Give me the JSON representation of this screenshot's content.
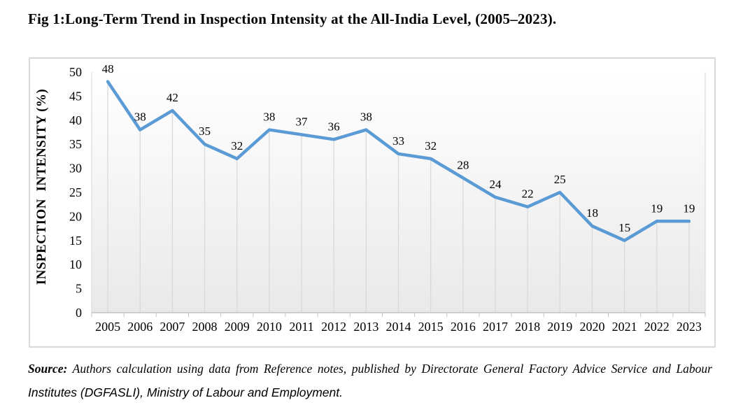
{
  "page": {
    "title": "Fig 1:Long-Term Trend in Inspection Intensity at the All-India Level, (2005–2023).",
    "source": {
      "label": "Source:",
      "line1": "Authors calculation using data from Reference notes, published by Directorate General Factory Advice Service and Labour",
      "line2": "Institutes (DGFASLI), Ministry of Labour and Employment."
    }
  },
  "chart_data": {
    "type": "line",
    "categories": [
      "2005",
      "2006",
      "2007",
      "2008",
      "2009",
      "2010",
      "2011",
      "2012",
      "2013",
      "2014",
      "2015",
      "2016",
      "2017",
      "2018",
      "2019",
      "2020",
      "2021",
      "2022",
      "2023"
    ],
    "values": [
      48,
      38,
      42,
      35,
      32,
      38,
      37,
      36,
      38,
      33,
      32,
      28,
      24,
      22,
      25,
      18,
      15,
      19,
      19
    ],
    "title": "",
    "xlabel": "",
    "ylabel": "INSPECTION  INTENSITY (%)",
    "ylim": [
      0,
      50
    ],
    "ytick_step": 5,
    "data_labels": true,
    "drop_lines": true,
    "horizontal_grid": false,
    "legend": false,
    "colors": {
      "line": "#5B9BD5",
      "drop_line": "#d9d9d9",
      "axis": "#c3c3c3",
      "plot_fill_top": "#ffffff",
      "plot_fill_bottom": "#e9e9e9",
      "plot_edge": "#dcdcdc",
      "text": "#000000"
    }
  }
}
